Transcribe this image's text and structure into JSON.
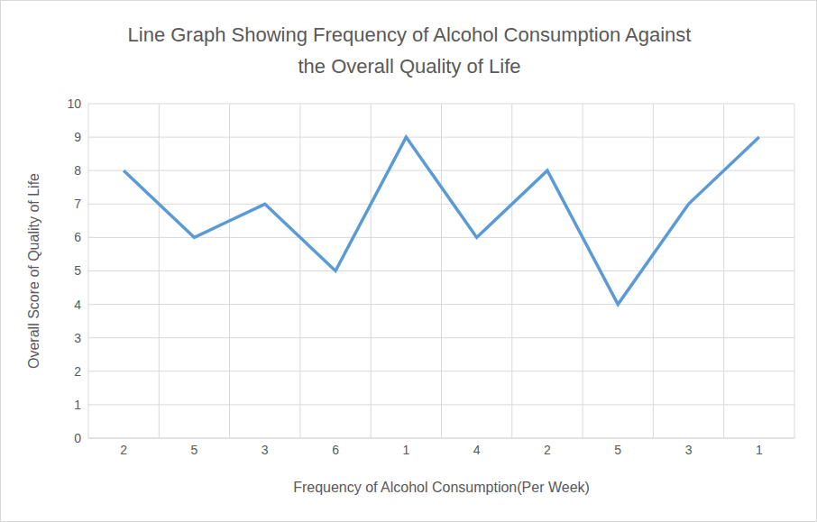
{
  "chart_data": {
    "type": "line",
    "title": "Line Graph Showing Frequency of Alcohol Consumption Against the Overall Quality of Life",
    "x_label": "Frequency of Alcohol Consumption(Per Week)",
    "y_label": "Overall Score of Quality of Life",
    "categories": [
      "2",
      "5",
      "3",
      "6",
      "1",
      "4",
      "2",
      "5",
      "3",
      "1"
    ],
    "values": [
      8,
      6,
      7,
      5,
      9,
      6,
      8,
      4,
      7,
      9
    ],
    "color": "#5b9bd5",
    "ylim": [
      0,
      10
    ],
    "yticks": [
      0,
      1,
      2,
      3,
      4,
      5,
      6,
      7,
      8,
      9,
      10
    ],
    "grid": true,
    "marker": "none"
  }
}
